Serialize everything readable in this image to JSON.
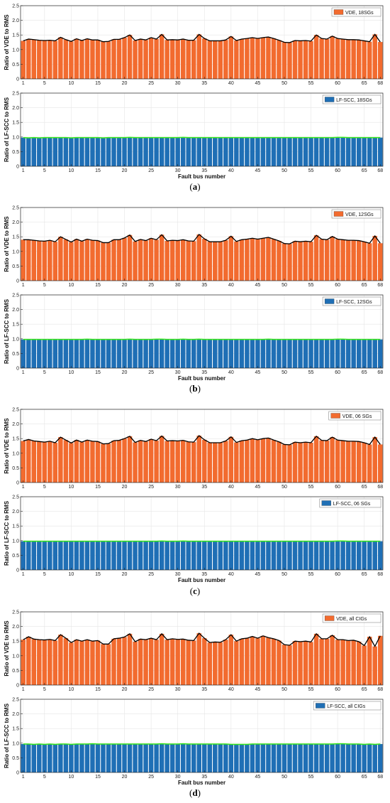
{
  "colors": {
    "vde_bar": "#f26b2f",
    "lf_bar": "#1f6fb5",
    "vde_line": "#000000",
    "lf_line": "#35e81b",
    "grid": "#e6e6e6",
    "axis": "#262626"
  },
  "common": {
    "xlabel": "Fault bus number",
    "xticks": [
      "1",
      "5",
      "10",
      "15",
      "20",
      "25",
      "30",
      "35",
      "40",
      "45",
      "50",
      "55",
      "60",
      "65",
      "68"
    ],
    "vde_ylabel": "Ratio of VDE to RMS",
    "lf_ylabel": "Ratio of LF-SCC to RMS",
    "yticks": [
      "0",
      "0.5",
      "1.0",
      "1.5",
      "2.0",
      "2.5"
    ]
  },
  "panels": [
    {
      "caption": "a",
      "vde_legend": "VDE, 18SGs",
      "lf_legend": "LF-SCC, 18SGs"
    },
    {
      "caption": "b",
      "vde_legend": "VDE, 12SGs",
      "lf_legend": "LF-SCC, 12SGs"
    },
    {
      "caption": "c",
      "vde_legend": "VDE, 06 SGs",
      "lf_legend": "LF-SCC, 06 SGs"
    },
    {
      "caption": "d",
      "vde_legend": "VDE, all CIGs",
      "lf_legend": "LF-SCC, all CIGs"
    }
  ],
  "chart_data": [
    {
      "type": "bar",
      "name": "a-top",
      "xlabel": "",
      "ylabel": "Ratio of VDE to RMS",
      "ylim": [
        0,
        2.5
      ],
      "grid": true,
      "legend_position": "top-right",
      "series": [
        {
          "name": "VDE, 18SGs",
          "x_range": [
            1,
            68
          ],
          "values": [
            1.3,
            1.36,
            1.34,
            1.32,
            1.31,
            1.32,
            1.3,
            1.42,
            1.34,
            1.28,
            1.37,
            1.31,
            1.37,
            1.33,
            1.33,
            1.27,
            1.28,
            1.35,
            1.35,
            1.41,
            1.5,
            1.31,
            1.36,
            1.33,
            1.41,
            1.36,
            1.52,
            1.33,
            1.34,
            1.33,
            1.36,
            1.32,
            1.32,
            1.52,
            1.38,
            1.3,
            1.3,
            1.3,
            1.33,
            1.45,
            1.31,
            1.36,
            1.38,
            1.41,
            1.38,
            1.41,
            1.43,
            1.38,
            1.32,
            1.25,
            1.24,
            1.31,
            1.3,
            1.31,
            1.29,
            1.5,
            1.38,
            1.36,
            1.46,
            1.38,
            1.36,
            1.34,
            1.34,
            1.33,
            1.3,
            1.27,
            1.52,
            1.26
          ]
        }
      ]
    },
    {
      "type": "bar",
      "name": "a-bottom",
      "xlabel": "Fault bus number",
      "ylabel": "Ratio of LF-SCC to RMS",
      "ylim": [
        0,
        2.5
      ],
      "grid": true,
      "legend_position": "top-right",
      "series": [
        {
          "name": "LF-SCC, 18SGs",
          "x_range": [
            1,
            68
          ],
          "values": [
            0.98,
            0.97,
            0.98,
            0.97,
            0.98,
            0.98,
            0.98,
            0.98,
            0.98,
            0.97,
            0.98,
            0.98,
            0.98,
            0.98,
            0.98,
            0.97,
            0.98,
            0.98,
            0.98,
            0.98,
            0.99,
            0.98,
            0.98,
            0.98,
            0.98,
            0.98,
            0.98,
            0.98,
            0.98,
            0.98,
            0.99,
            0.98,
            0.98,
            0.98,
            0.98,
            0.98,
            0.98,
            0.98,
            0.98,
            0.98,
            0.98,
            0.98,
            0.98,
            0.98,
            0.98,
            0.98,
            0.98,
            0.98,
            0.98,
            0.98,
            0.98,
            0.98,
            0.98,
            0.98,
            0.98,
            0.98,
            0.98,
            0.98,
            0.98,
            0.99,
            0.99,
            0.98,
            0.98,
            0.98,
            0.98,
            0.98,
            0.98,
            0.98
          ]
        }
      ]
    },
    {
      "type": "bar",
      "name": "b-top",
      "xlabel": "",
      "ylabel": "Ratio of VDE to RMS",
      "ylim": [
        0,
        2.5
      ],
      "grid": true,
      "legend_position": "top-right",
      "series": [
        {
          "name": "VDE, 12SGs",
          "x_range": [
            1,
            68
          ],
          "values": [
            1.4,
            1.4,
            1.38,
            1.36,
            1.35,
            1.38,
            1.33,
            1.5,
            1.41,
            1.32,
            1.42,
            1.35,
            1.42,
            1.38,
            1.37,
            1.3,
            1.3,
            1.4,
            1.4,
            1.46,
            1.56,
            1.34,
            1.41,
            1.37,
            1.45,
            1.4,
            1.57,
            1.36,
            1.38,
            1.37,
            1.4,
            1.36,
            1.35,
            1.58,
            1.43,
            1.33,
            1.33,
            1.33,
            1.38,
            1.52,
            1.34,
            1.4,
            1.42,
            1.45,
            1.42,
            1.45,
            1.48,
            1.42,
            1.36,
            1.27,
            1.26,
            1.35,
            1.33,
            1.35,
            1.33,
            1.55,
            1.42,
            1.4,
            1.51,
            1.42,
            1.4,
            1.38,
            1.38,
            1.37,
            1.33,
            1.28,
            1.53,
            1.28
          ]
        }
      ]
    },
    {
      "type": "bar",
      "name": "b-bottom",
      "xlabel": "Fault bus number",
      "ylabel": "Ratio of LF-SCC to RMS",
      "ylim": [
        0,
        2.5
      ],
      "grid": true,
      "legend_position": "top-right",
      "series": [
        {
          "name": "LF-SCC, 12SGs",
          "x_range": [
            1,
            68
          ],
          "values": [
            0.98,
            0.98,
            0.98,
            0.98,
            0.98,
            0.98,
            0.98,
            0.98,
            0.98,
            0.98,
            0.98,
            0.98,
            0.99,
            0.98,
            0.98,
            0.98,
            0.98,
            0.98,
            0.98,
            0.98,
            0.99,
            0.98,
            0.98,
            0.98,
            0.98,
            0.99,
            0.99,
            0.98,
            0.98,
            0.98,
            0.99,
            0.98,
            0.98,
            0.99,
            0.98,
            0.98,
            0.98,
            0.98,
            0.98,
            0.98,
            0.98,
            0.98,
            0.98,
            0.98,
            0.98,
            0.98,
            0.99,
            0.98,
            0.98,
            0.98,
            0.98,
            0.98,
            0.98,
            0.98,
            0.98,
            0.98,
            0.98,
            0.98,
            0.98,
            0.99,
            0.99,
            0.98,
            0.98,
            0.98,
            0.98,
            0.98,
            0.98,
            0.98
          ]
        }
      ]
    },
    {
      "type": "bar",
      "name": "c-top",
      "xlabel": "",
      "ylabel": "Ratio of VDE to RMS",
      "ylim": [
        0,
        2.5
      ],
      "grid": true,
      "legend_position": "top-right",
      "series": [
        {
          "name": "VDE, 06 SGs",
          "x_range": [
            1,
            68
          ],
          "values": [
            1.42,
            1.47,
            1.42,
            1.4,
            1.38,
            1.41,
            1.36,
            1.55,
            1.45,
            1.35,
            1.45,
            1.38,
            1.45,
            1.41,
            1.4,
            1.32,
            1.33,
            1.43,
            1.44,
            1.5,
            1.58,
            1.37,
            1.44,
            1.4,
            1.48,
            1.43,
            1.59,
            1.42,
            1.43,
            1.42,
            1.44,
            1.39,
            1.38,
            1.6,
            1.46,
            1.36,
            1.36,
            1.36,
            1.42,
            1.56,
            1.37,
            1.43,
            1.45,
            1.5,
            1.46,
            1.5,
            1.52,
            1.45,
            1.39,
            1.3,
            1.29,
            1.38,
            1.36,
            1.38,
            1.36,
            1.58,
            1.44,
            1.43,
            1.55,
            1.45,
            1.43,
            1.41,
            1.41,
            1.4,
            1.36,
            1.3,
            1.55,
            1.3
          ]
        }
      ]
    },
    {
      "type": "bar",
      "name": "c-bottom",
      "xlabel": "Fault bus number",
      "ylabel": "Ratio of LF-SCC to RMS",
      "ylim": [
        0,
        2.5
      ],
      "grid": true,
      "legend_position": "top-right",
      "series": [
        {
          "name": "LF-SCC, 06 SGs",
          "x_range": [
            1,
            68
          ],
          "values": [
            0.98,
            0.98,
            0.98,
            0.98,
            0.98,
            0.98,
            0.98,
            0.98,
            0.98,
            0.98,
            0.98,
            0.98,
            0.98,
            0.98,
            0.98,
            0.98,
            0.98,
            0.98,
            0.98,
            0.98,
            0.98,
            0.98,
            0.98,
            0.98,
            0.98,
            0.98,
            0.99,
            0.98,
            0.98,
            0.98,
            0.99,
            0.98,
            0.98,
            0.98,
            0.98,
            0.98,
            0.98,
            0.98,
            0.98,
            0.98,
            0.98,
            0.98,
            0.98,
            0.98,
            0.98,
            0.98,
            0.98,
            0.98,
            0.98,
            0.98,
            0.98,
            0.98,
            0.98,
            0.98,
            0.98,
            0.98,
            0.98,
            0.98,
            0.98,
            0.99,
            0.99,
            0.98,
            0.98,
            0.98,
            0.98,
            0.98,
            0.98,
            0.98
          ]
        }
      ]
    },
    {
      "type": "bar",
      "name": "d-top",
      "xlabel": "",
      "ylabel": "Ratio of VDE to RMS",
      "ylim": [
        0,
        2.5
      ],
      "grid": true,
      "legend_position": "top-right",
      "series": [
        {
          "name": "VDE, all CIGs",
          "x_range": [
            1,
            68
          ],
          "values": [
            1.55,
            1.65,
            1.57,
            1.55,
            1.54,
            1.56,
            1.52,
            1.72,
            1.6,
            1.45,
            1.55,
            1.5,
            1.55,
            1.5,
            1.52,
            1.4,
            1.4,
            1.58,
            1.6,
            1.64,
            1.75,
            1.48,
            1.57,
            1.55,
            1.6,
            1.55,
            1.75,
            1.55,
            1.58,
            1.56,
            1.57,
            1.53,
            1.52,
            1.77,
            1.6,
            1.45,
            1.47,
            1.46,
            1.55,
            1.72,
            1.5,
            1.58,
            1.6,
            1.66,
            1.6,
            1.68,
            1.62,
            1.58,
            1.52,
            1.38,
            1.36,
            1.5,
            1.48,
            1.5,
            1.47,
            1.75,
            1.58,
            1.58,
            1.7,
            1.55,
            1.55,
            1.52,
            1.53,
            1.48,
            1.35,
            1.65,
            1.32,
            1.68
          ]
        }
      ]
    },
    {
      "type": "bar",
      "name": "d-bottom",
      "xlabel": "Fault bus number",
      "ylabel": "Ratio of LF-SCC to RMS",
      "ylim": [
        0,
        2.5
      ],
      "grid": true,
      "legend_position": "top-right",
      "series": [
        {
          "name": "LF-SCC, all CIGs",
          "x_range": [
            1,
            68
          ],
          "values": [
            0.97,
            0.97,
            0.96,
            0.97,
            0.96,
            0.97,
            0.96,
            0.97,
            0.97,
            0.96,
            0.97,
            0.97,
            0.97,
            0.98,
            0.97,
            0.97,
            0.97,
            0.97,
            0.97,
            0.97,
            0.97,
            0.97,
            0.97,
            0.97,
            0.97,
            0.97,
            0.98,
            0.97,
            0.97,
            0.97,
            0.98,
            0.97,
            0.97,
            0.97,
            0.97,
            0.97,
            0.97,
            0.97,
            0.97,
            0.96,
            0.96,
            0.96,
            0.96,
            0.97,
            0.97,
            0.97,
            0.97,
            0.97,
            0.97,
            0.97,
            0.97,
            0.97,
            0.97,
            0.97,
            0.97,
            0.97,
            0.97,
            0.97,
            0.97,
            0.98,
            0.98,
            0.97,
            0.97,
            0.97,
            0.96,
            0.97,
            0.96,
            0.97
          ]
        }
      ]
    }
  ]
}
